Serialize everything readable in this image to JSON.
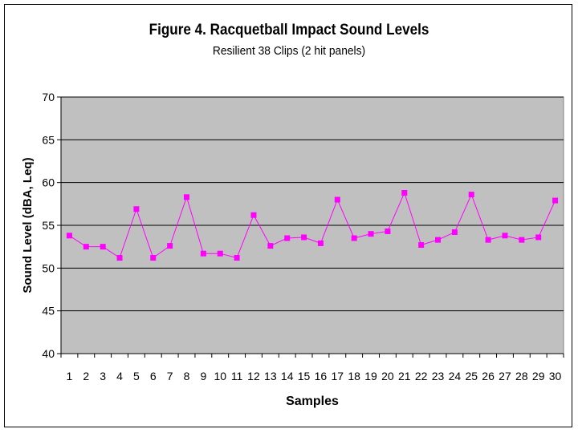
{
  "chart_data": {
    "type": "line",
    "title": "Figure 4. Racquetball Impact Sound Levels",
    "subtitle": "Resilient 38 Clips (2 hit panels)",
    "xlabel": "Samples",
    "ylabel": "Sound Level (dBA, Leq)",
    "ylim": [
      40,
      70
    ],
    "yticks": [
      40,
      45,
      50,
      55,
      60,
      65,
      70
    ],
    "grid": true,
    "legend": "none",
    "categories": [
      "1",
      "2",
      "3",
      "4",
      "5",
      "6",
      "7",
      "8",
      "9",
      "10",
      "11",
      "12",
      "13",
      "14",
      "15",
      "16",
      "17",
      "18",
      "19",
      "20",
      "21",
      "22",
      "23",
      "24",
      "25",
      "26",
      "27",
      "28",
      "29",
      "30"
    ],
    "series": [
      {
        "values": [
          53.8,
          52.5,
          52.5,
          51.2,
          56.9,
          51.2,
          52.6,
          58.3,
          51.7,
          51.7,
          51.2,
          56.2,
          52.6,
          53.5,
          53.6,
          52.9,
          58.0,
          53.5,
          54.0,
          54.3,
          58.8,
          52.7,
          53.3,
          54.2,
          58.6,
          53.3,
          53.8,
          53.3,
          53.6,
          57.9
        ],
        "color": "#ff00ff"
      }
    ],
    "colors": {
      "plot_bg": "#c0c0c0",
      "grid": "#000000",
      "marker": "#ff00ff"
    }
  }
}
